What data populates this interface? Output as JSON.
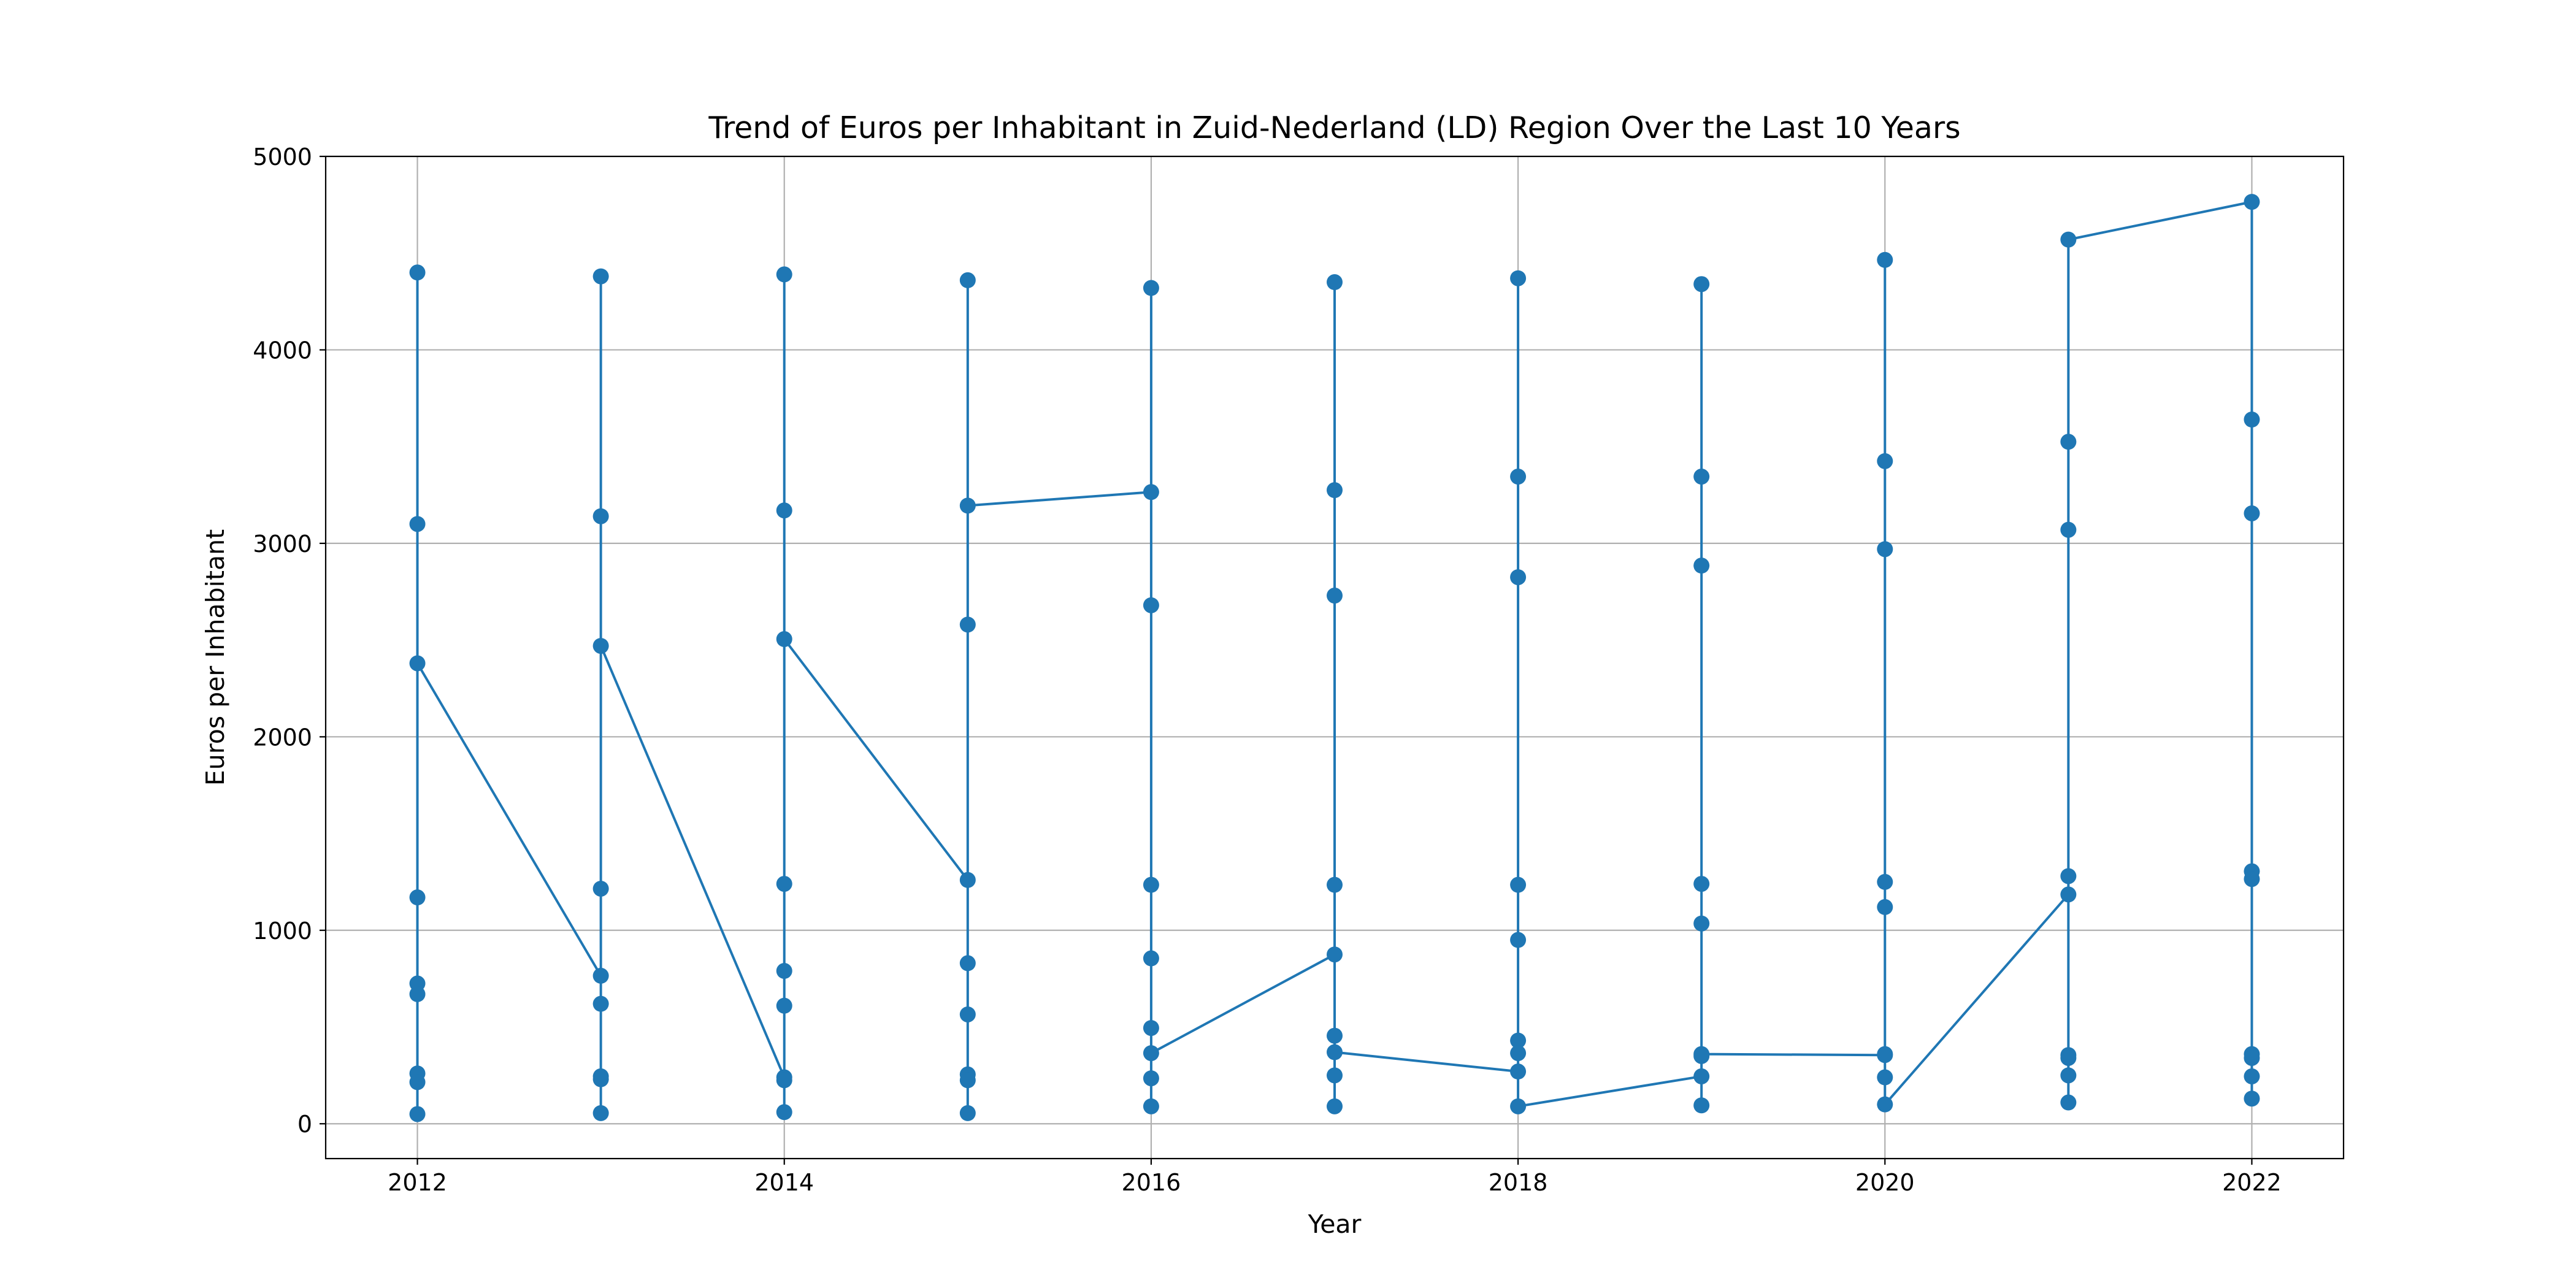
{
  "chart_data": {
    "type": "line",
    "title": "Trend of Euros per Inhabitant in Zuid-Nederland (LD) Region Over the Last 10 Years",
    "xlabel": "Year",
    "ylabel": "Euros per Inhabitant",
    "x": [
      2012,
      2012,
      2012,
      2012,
      2012,
      2012,
      2012,
      2012,
      2012,
      2013,
      2013,
      2013,
      2013,
      2013,
      2013,
      2013,
      2013,
      2013,
      2014,
      2014,
      2014,
      2014,
      2014,
      2014,
      2014,
      2014,
      2014,
      2015,
      2015,
      2015,
      2015,
      2015,
      2015,
      2015,
      2015,
      2015,
      2016,
      2016,
      2016,
      2016,
      2016,
      2016,
      2016,
      2016,
      2016,
      2017,
      2017,
      2017,
      2017,
      2017,
      2017,
      2017,
      2017,
      2017,
      2018,
      2018,
      2018,
      2018,
      2018,
      2018,
      2018,
      2018,
      2018,
      2019,
      2019,
      2019,
      2019,
      2019,
      2019,
      2019,
      2019,
      2019,
      2020,
      2020,
      2020,
      2020,
      2020,
      2020,
      2020,
      2020,
      2020,
      2021,
      2021,
      2021,
      2021,
      2021,
      2021,
      2021,
      2021,
      2021,
      2022,
      2022,
      2022,
      2022,
      2022,
      2022,
      2022,
      2022,
      2022
    ],
    "series": [
      {
        "color": "#1f77b4",
        "values": [
          4400,
          3100,
          1170,
          725,
          670,
          260,
          215,
          50,
          2380,
          765,
          4380,
          3140,
          1215,
          620,
          245,
          230,
          55,
          2470,
          240,
          4390,
          3170,
          1240,
          790,
          610,
          225,
          60,
          2505,
          1260,
          4360,
          2580,
          830,
          565,
          255,
          225,
          55,
          3195,
          3265,
          4320,
          2680,
          1235,
          855,
          495,
          235,
          90,
          365,
          875,
          4350,
          3275,
          2730,
          1235,
          455,
          250,
          90,
          370,
          270,
          4370,
          3345,
          2825,
          1235,
          950,
          430,
          365,
          90,
          245,
          4340,
          3345,
          2885,
          1240,
          1035,
          350,
          95,
          360,
          355,
          4465,
          3425,
          2970,
          1250,
          1120,
          360,
          240,
          100,
          1185,
          3525,
          3070,
          1280,
          355,
          340,
          250,
          110,
          4570,
          4765,
          3640,
          3155,
          1305,
          1265,
          360,
          340,
          245,
          130
        ]
      }
    ],
    "xlim": [
      2011.5,
      2022.5
    ],
    "xticks": [
      2012,
      2014,
      2016,
      2018,
      2020,
      2022
    ],
    "ylim": [
      -180,
      5000
    ],
    "yticks": [
      0,
      1000,
      2000,
      3000,
      4000,
      5000
    ],
    "grid": true
  }
}
